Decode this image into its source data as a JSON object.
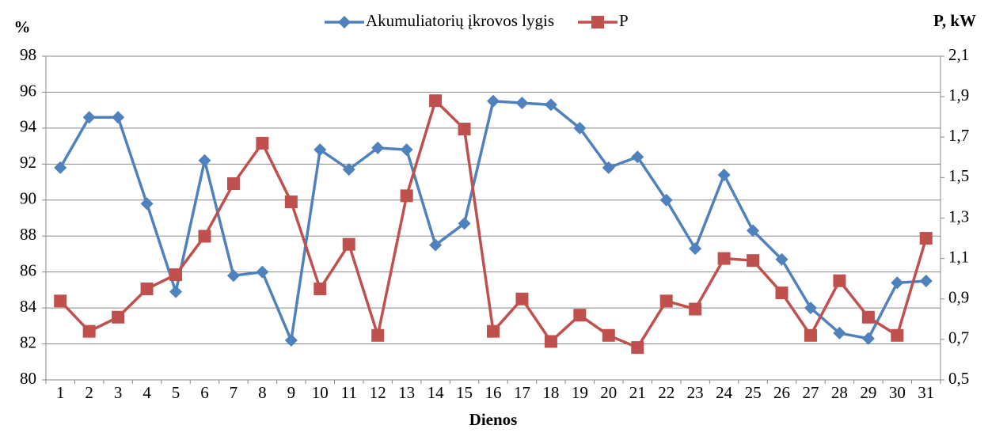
{
  "chart_data": {
    "type": "line",
    "y_label": "%",
    "y2_label": "P, kW",
    "x_label": "Dienos",
    "categories": [
      "1",
      "2",
      "3",
      "4",
      "5",
      "6",
      "7",
      "8",
      "9",
      "10",
      "11",
      "12",
      "13",
      "14",
      "15",
      "16",
      "17",
      "18",
      "19",
      "20",
      "21",
      "22",
      "23",
      "24",
      "25",
      "26",
      "27",
      "28",
      "29",
      "30",
      "31"
    ],
    "series": [
      {
        "name": "Akumuliatorių įkrovos lygis",
        "color": "#4f81bd",
        "marker": "diamond",
        "values": [
          91.8,
          94.6,
          94.6,
          89.8,
          84.9,
          92.2,
          85.8,
          86.0,
          82.2,
          92.8,
          91.7,
          92.9,
          92.8,
          87.5,
          88.7,
          95.5,
          95.4,
          95.3,
          94.0,
          91.8,
          92.4,
          90.0,
          87.3,
          91.4,
          88.3,
          86.7,
          84.0,
          82.6,
          82.3,
          85.4,
          85.5
        ]
      },
      {
        "name": "P",
        "color": "#c0504d",
        "marker": "square",
        "axis": "y2",
        "values": [
          0.89,
          0.74,
          0.81,
          0.95,
          1.02,
          1.21,
          1.47,
          1.67,
          1.38,
          0.95,
          1.17,
          0.72,
          1.41,
          1.88,
          1.74,
          0.74,
          0.9,
          0.69,
          0.82,
          0.72,
          0.66,
          0.89,
          0.85,
          1.1,
          1.09,
          0.93,
          0.72,
          0.99,
          0.81,
          0.72,
          1.2
        ]
      }
    ],
    "ylim": [
      80,
      98
    ],
    "yticks": [
      80,
      82,
      84,
      86,
      88,
      90,
      92,
      94,
      96,
      98
    ],
    "y2lim": [
      0.5,
      2.1
    ],
    "y2ticks": [
      {
        "value": 0.5,
        "label": "0,5"
      },
      {
        "value": 0.7,
        "label": "0,7"
      },
      {
        "value": 0.9,
        "label": "0,9"
      },
      {
        "value": 1.1,
        "label": "1,1"
      },
      {
        "value": 1.3,
        "label": "1,3"
      },
      {
        "value": 1.5,
        "label": "1,5"
      },
      {
        "value": 1.7,
        "label": "1,7"
      },
      {
        "value": 1.9,
        "label": "1,9"
      },
      {
        "value": 2.1,
        "label": "2,1"
      }
    ],
    "grid": true,
    "legend": "top"
  }
}
